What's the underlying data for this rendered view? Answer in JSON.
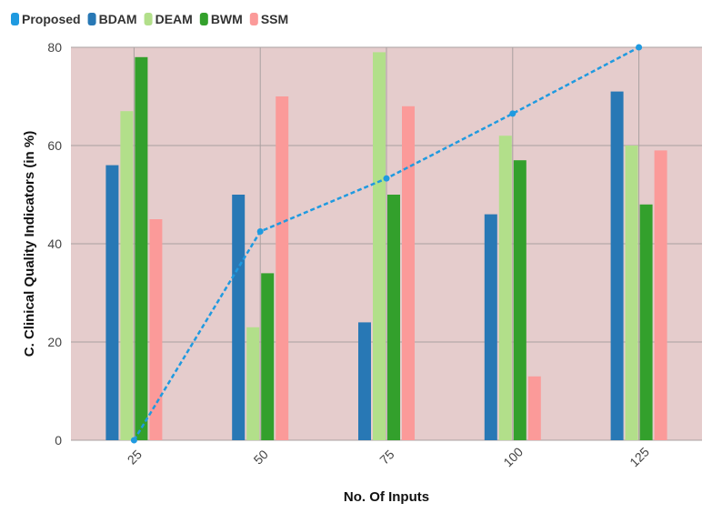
{
  "chart_data": {
    "type": "bar",
    "title": "",
    "xlabel": "No. Of Inputs",
    "ylabel": "C. Clinical Quality Indicators (in %)",
    "categories": [
      "25",
      "50",
      "75",
      "100",
      "125"
    ],
    "ylim": [
      0,
      80
    ],
    "yticks": [
      0,
      20,
      40,
      60,
      80
    ],
    "grid": true,
    "legend_position": "top-left",
    "plot_background": "#e5cccc",
    "series": [
      {
        "name": "Proposed",
        "kind": "line",
        "style": "dashed",
        "color": "#1f9ae0",
        "values": [
          0,
          42.5,
          53.3,
          66.5,
          80
        ]
      },
      {
        "name": "BDAM",
        "kind": "bar",
        "color": "#2878b5",
        "values": [
          56,
          50,
          24,
          46,
          71
        ]
      },
      {
        "name": "DEAM",
        "kind": "bar",
        "color": "#b2df8a",
        "values": [
          67,
          23,
          79,
          62,
          60
        ]
      },
      {
        "name": "BWM",
        "kind": "bar",
        "color": "#33a02c",
        "values": [
          78,
          34,
          50,
          57,
          48
        ]
      },
      {
        "name": "SSM",
        "kind": "bar",
        "color": "#fb9a99",
        "values": [
          45,
          70,
          68,
          13,
          59
        ]
      }
    ]
  }
}
